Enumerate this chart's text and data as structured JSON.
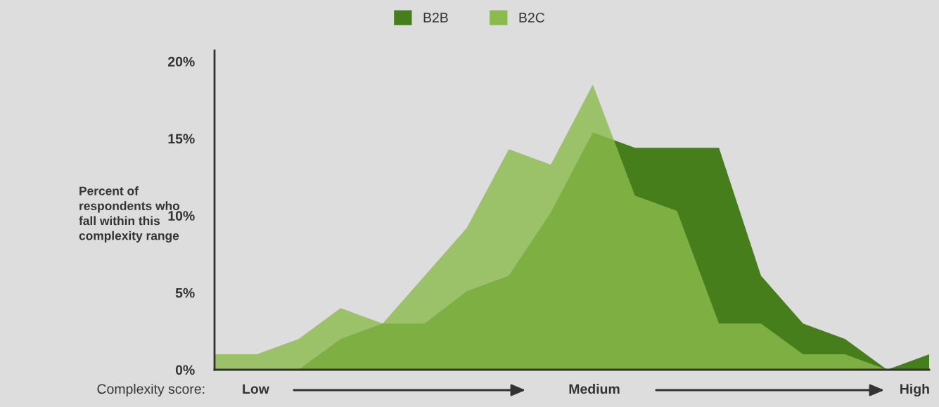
{
  "chart_data": {
    "type": "area",
    "ylabel": "Percent of respondents who fall within this complexity range",
    "categories": [
      null,
      null,
      null,
      null,
      null,
      null,
      null,
      null,
      null,
      null,
      null,
      null,
      null,
      null,
      null,
      null,
      null,
      null
    ],
    "series": [
      {
        "name": "B2B",
        "color": "#467e1c",
        "values": [
          0,
          0,
          0,
          2,
          3,
          3,
          5.1,
          6.1,
          10.2,
          15.4,
          14.4,
          14.4,
          14.4,
          6.1,
          3,
          2,
          0,
          1
        ]
      },
      {
        "name": "B2C",
        "color": "#8bbb4c",
        "values": [
          1,
          1,
          2,
          4,
          3,
          6.1,
          9.2,
          14.3,
          13.3,
          18.5,
          11.3,
          10.3,
          3,
          3,
          1,
          1,
          0,
          0
        ]
      }
    ],
    "ylim": [
      0,
      20.7
    ],
    "yticks": [
      {
        "value": 0,
        "label": "0%"
      },
      {
        "value": 5,
        "label": "5%"
      },
      {
        "value": 10,
        "label": "10%"
      },
      {
        "value": 15,
        "label": "15%"
      },
      {
        "value": 20,
        "label": "20%"
      }
    ],
    "tick_labels": "y",
    "grid": false,
    "legend": "top",
    "annotations": [
      "Complexity score:",
      "Low",
      "Medium",
      "High"
    ]
  }
}
